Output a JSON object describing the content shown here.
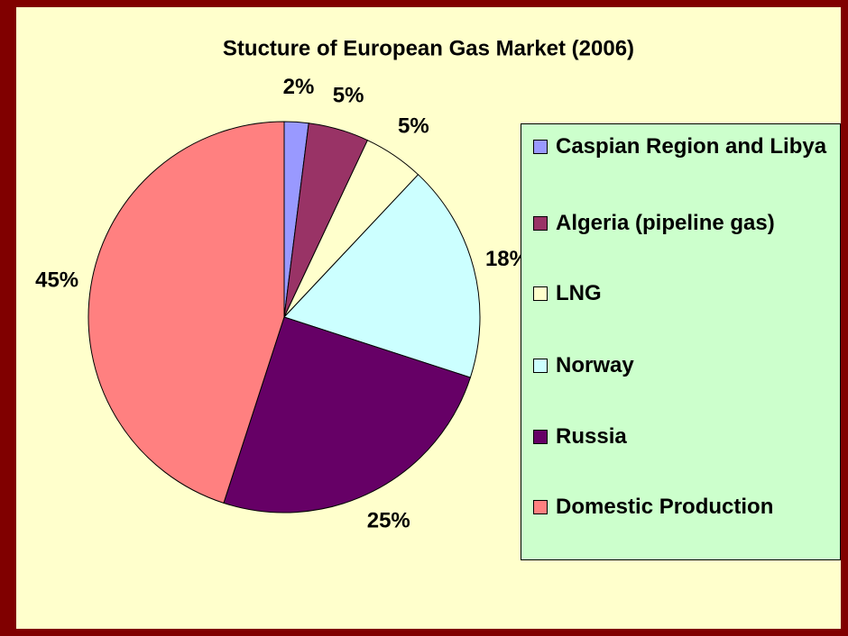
{
  "chart_data": {
    "type": "pie",
    "title": "Stucture of European Gas Market (2006)",
    "categories": [
      "Caspian Region and Libya",
      "Algeria (pipeline gas)",
      "LNG",
      "Norway",
      "Russia",
      "Domestic Production"
    ],
    "values": [
      2,
      5,
      5,
      18,
      25,
      45
    ],
    "value_labels": [
      "2%",
      "5%",
      "5%",
      "18%",
      "25%",
      "45%"
    ],
    "colors": [
      "#9999FF",
      "#993366",
      "#FFFFCC",
      "#CCFFFF",
      "#660066",
      "#FF8080"
    ],
    "legend": "right"
  }
}
